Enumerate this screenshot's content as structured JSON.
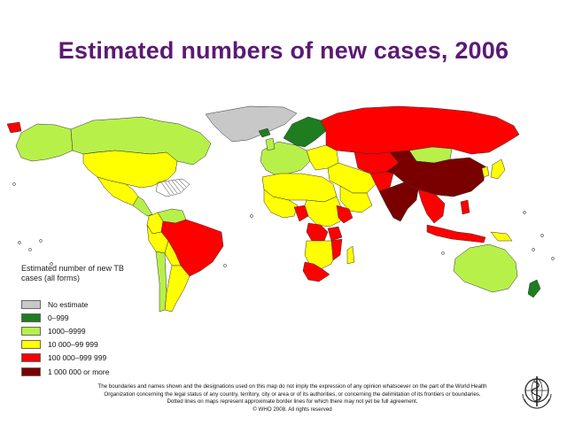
{
  "title": "Estimated numbers of new cases, 2006",
  "legend": {
    "title_line1": "Estimated number of new TB",
    "title_line2": "cases (all forms)",
    "items": [
      {
        "label": "No estimate",
        "color": "#c8c8c8"
      },
      {
        "label": "0–999",
        "color": "#1e7d1e"
      },
      {
        "label": "1000–9999",
        "color": "#b8f04a"
      },
      {
        "label": "10 000–99 999",
        "color": "#ffff00"
      },
      {
        "label": "100 000–999 999",
        "color": "#ff0000"
      },
      {
        "label": "1 000 000 or more",
        "color": "#7a0000"
      }
    ]
  },
  "disclaimer": {
    "line1": "The boundaries and names shown and the designations used on this map do not imply the expression of any opinion whatsoever on the part of the World Health",
    "line2": "Organization concerning the legal status of any country, territory, city or area or of its authorities, or concerning the delimitation of its frontiers or boundaries.",
    "line3": "Dotted lines on maps represent approximate border lines for which there may not yet be full agreement.",
    "line4": "© WHO 2008. All rights reserved"
  },
  "map_regions": [
    {
      "name": "Greenland",
      "category": "No estimate"
    },
    {
      "name": "Canada",
      "category": "1000–9999"
    },
    {
      "name": "Alaska",
      "category": "1000–9999"
    },
    {
      "name": "United States",
      "category": "10 000–99 999"
    },
    {
      "name": "Mexico",
      "category": "10 000–99 999"
    },
    {
      "name": "Central America",
      "category": "1000–9999"
    },
    {
      "name": "Colombia",
      "category": "10 000–99 999"
    },
    {
      "name": "Venezuela",
      "category": "1000–9999"
    },
    {
      "name": "Brazil",
      "category": "100 000–999 999"
    },
    {
      "name": "Peru",
      "category": "10 000–99 999"
    },
    {
      "name": "Bolivia",
      "category": "10 000–99 999"
    },
    {
      "name": "Argentina",
      "category": "10 000–99 999"
    },
    {
      "name": "Chile",
      "category": "1000–9999"
    },
    {
      "name": "Western Europe",
      "category": "1000–9999"
    },
    {
      "name": "Scandinavia",
      "category": "0–999"
    },
    {
      "name": "Eastern Europe",
      "category": "10 000–99 999"
    },
    {
      "name": "Russia",
      "category": "100 000–999 999"
    },
    {
      "name": "Kazakhstan",
      "category": "100 000–999 999"
    },
    {
      "name": "Mongolia",
      "category": "1000–9999"
    },
    {
      "name": "China",
      "category": "1 000 000 or more"
    },
    {
      "name": "India",
      "category": "1 000 000 or more"
    },
    {
      "name": "Pakistan",
      "category": "100 000–999 999"
    },
    {
      "name": "Iran",
      "category": "10 000–99 999"
    },
    {
      "name": "Arabian Peninsula",
      "category": "10 000–99 999"
    },
    {
      "name": "Southeast Asia",
      "category": "100 000–999 999"
    },
    {
      "name": "Indonesia",
      "category": "100 000–999 999"
    },
    {
      "name": "Philippines",
      "category": "100 000–999 999"
    },
    {
      "name": "Japan",
      "category": "10 000–99 999"
    },
    {
      "name": "Australia",
      "category": "1000–9999"
    },
    {
      "name": "New Zealand",
      "category": "0–999"
    },
    {
      "name": "Papua New Guinea",
      "category": "10 000–99 999"
    },
    {
      "name": "North Africa",
      "category": "10 000–99 999"
    },
    {
      "name": "Nigeria",
      "category": "100 000–999 999"
    },
    {
      "name": "Ethiopia",
      "category": "100 000–999 999"
    },
    {
      "name": "DR Congo",
      "category": "100 000–999 999"
    },
    {
      "name": "Tanzania",
      "category": "100 000–999 999"
    },
    {
      "name": "Mozambique",
      "category": "100 000–999 999"
    },
    {
      "name": "South Africa",
      "category": "100 000–999 999"
    },
    {
      "name": "Other Africa",
      "category": "10 000–99 999"
    }
  ]
}
